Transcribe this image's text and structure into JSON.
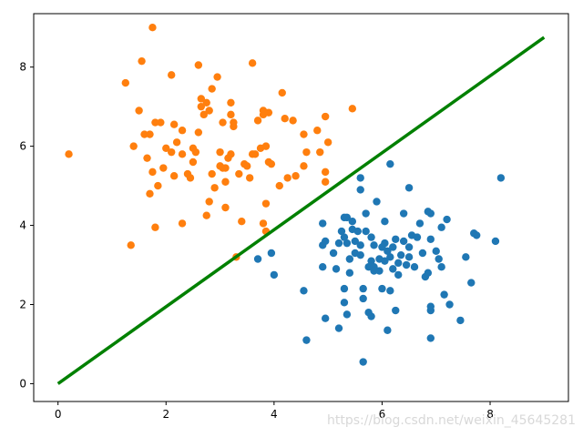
{
  "chart_data": {
    "type": "scatter",
    "title": "",
    "xlabel": "",
    "ylabel": "",
    "xlim": [
      -0.45,
      9.45
    ],
    "ylim": [
      -0.45,
      9.35
    ],
    "xticks": [
      0,
      2,
      4,
      6,
      8
    ],
    "yticks": [
      0,
      2,
      4,
      6,
      8
    ],
    "xtick_labels": [
      "0",
      "2",
      "4",
      "6",
      "8"
    ],
    "ytick_labels": [
      "0",
      "2",
      "4",
      "6",
      "8"
    ],
    "grid": false,
    "legend": "none",
    "series": [
      {
        "color": "#1f77b4",
        "points": [
          [
            3.7,
            3.15
          ],
          [
            3.95,
            3.3
          ],
          [
            4.0,
            2.75
          ],
          [
            4.55,
            2.35
          ],
          [
            4.6,
            1.1
          ],
          [
            4.9,
            4.05
          ],
          [
            4.9,
            3.5
          ],
          [
            4.95,
            3.6
          ],
          [
            4.9,
            2.95
          ],
          [
            4.95,
            1.65
          ],
          [
            5.1,
            3.3
          ],
          [
            5.15,
            2.9
          ],
          [
            5.2,
            1.4
          ],
          [
            5.2,
            3.55
          ],
          [
            5.25,
            3.85
          ],
          [
            5.3,
            4.2
          ],
          [
            5.3,
            3.7
          ],
          [
            5.3,
            2.4
          ],
          [
            5.3,
            2.05
          ],
          [
            5.35,
            1.75
          ],
          [
            5.35,
            4.2
          ],
          [
            5.35,
            3.55
          ],
          [
            5.4,
            3.15
          ],
          [
            5.4,
            2.8
          ],
          [
            5.45,
            4.1
          ],
          [
            5.45,
            3.9
          ],
          [
            5.5,
            3.6
          ],
          [
            5.5,
            3.3
          ],
          [
            5.55,
            3.85
          ],
          [
            5.6,
            5.2
          ],
          [
            5.6,
            4.9
          ],
          [
            5.6,
            3.5
          ],
          [
            5.6,
            3.25
          ],
          [
            5.65,
            2.4
          ],
          [
            5.65,
            2.15
          ],
          [
            5.65,
            0.55
          ],
          [
            5.7,
            4.3
          ],
          [
            5.7,
            3.85
          ],
          [
            5.75,
            1.8
          ],
          [
            5.75,
            2.95
          ],
          [
            5.8,
            3.1
          ],
          [
            5.8,
            3.7
          ],
          [
            5.8,
            1.7
          ],
          [
            5.85,
            3.5
          ],
          [
            5.85,
            2.95
          ],
          [
            5.85,
            2.85
          ],
          [
            5.9,
            4.6
          ],
          [
            5.95,
            3.15
          ],
          [
            5.95,
            2.85
          ],
          [
            6.0,
            3.45
          ],
          [
            6.0,
            2.4
          ],
          [
            6.05,
            4.1
          ],
          [
            6.05,
            3.55
          ],
          [
            6.05,
            3.1
          ],
          [
            6.1,
            3.35
          ],
          [
            6.1,
            1.35
          ],
          [
            6.15,
            5.55
          ],
          [
            6.15,
            3.2
          ],
          [
            6.15,
            2.35
          ],
          [
            6.2,
            3.45
          ],
          [
            6.2,
            2.9
          ],
          [
            6.25,
            3.65
          ],
          [
            6.25,
            1.85
          ],
          [
            6.3,
            2.75
          ],
          [
            6.3,
            3.05
          ],
          [
            6.35,
            3.25
          ],
          [
            6.4,
            3.6
          ],
          [
            6.4,
            4.3
          ],
          [
            6.45,
            3.0
          ],
          [
            6.5,
            4.95
          ],
          [
            6.5,
            3.45
          ],
          [
            6.5,
            3.2
          ],
          [
            6.55,
            3.75
          ],
          [
            6.6,
            2.95
          ],
          [
            6.65,
            3.7
          ],
          [
            6.7,
            4.05
          ],
          [
            6.75,
            3.3
          ],
          [
            6.8,
            2.7
          ],
          [
            6.85,
            2.8
          ],
          [
            6.85,
            4.35
          ],
          [
            6.9,
            4.3
          ],
          [
            6.9,
            1.85
          ],
          [
            6.9,
            1.15
          ],
          [
            6.9,
            1.95
          ],
          [
            6.9,
            3.65
          ],
          [
            7.0,
            3.35
          ],
          [
            7.05,
            3.15
          ],
          [
            7.1,
            3.95
          ],
          [
            7.1,
            2.95
          ],
          [
            7.15,
            2.25
          ],
          [
            7.2,
            4.15
          ],
          [
            7.25,
            2.0
          ],
          [
            7.45,
            1.6
          ],
          [
            7.55,
            3.2
          ],
          [
            7.65,
            2.55
          ],
          [
            7.7,
            3.8
          ],
          [
            7.75,
            3.75
          ],
          [
            8.1,
            3.6
          ],
          [
            8.2,
            5.2
          ]
        ]
      },
      {
        "color": "#ff7f0e",
        "points": [
          [
            0.2,
            5.8
          ],
          [
            1.25,
            7.6
          ],
          [
            1.35,
            3.5
          ],
          [
            1.4,
            6.0
          ],
          [
            1.5,
            6.9
          ],
          [
            1.55,
            8.15
          ],
          [
            1.6,
            6.3
          ],
          [
            1.65,
            5.7
          ],
          [
            1.7,
            6.3
          ],
          [
            1.7,
            4.8
          ],
          [
            1.75,
            9.0
          ],
          [
            1.75,
            5.35
          ],
          [
            1.8,
            6.6
          ],
          [
            1.8,
            3.95
          ],
          [
            1.85,
            5.0
          ],
          [
            1.9,
            6.6
          ],
          [
            1.95,
            5.45
          ],
          [
            2.0,
            5.95
          ],
          [
            2.1,
            7.8
          ],
          [
            2.1,
            5.85
          ],
          [
            2.15,
            6.55
          ],
          [
            2.15,
            5.25
          ],
          [
            2.2,
            6.1
          ],
          [
            2.3,
            5.8
          ],
          [
            2.3,
            6.4
          ],
          [
            2.3,
            4.05
          ],
          [
            2.4,
            5.3
          ],
          [
            2.45,
            5.2
          ],
          [
            2.5,
            5.6
          ],
          [
            2.5,
            5.95
          ],
          [
            2.55,
            5.85
          ],
          [
            2.6,
            8.05
          ],
          [
            2.6,
            6.35
          ],
          [
            2.65,
            7.2
          ],
          [
            2.65,
            7.0
          ],
          [
            2.7,
            6.8
          ],
          [
            2.75,
            7.1
          ],
          [
            2.75,
            4.25
          ],
          [
            2.8,
            6.9
          ],
          [
            2.8,
            4.6
          ],
          [
            2.85,
            7.45
          ],
          [
            2.85,
            5.3
          ],
          [
            2.9,
            4.95
          ],
          [
            2.95,
            7.75
          ],
          [
            3.0,
            5.5
          ],
          [
            3.0,
            5.85
          ],
          [
            3.05,
            6.6
          ],
          [
            3.05,
            5.45
          ],
          [
            3.1,
            5.1
          ],
          [
            3.1,
            5.45
          ],
          [
            3.1,
            4.45
          ],
          [
            3.15,
            5.7
          ],
          [
            3.2,
            6.8
          ],
          [
            3.2,
            7.1
          ],
          [
            3.2,
            5.8
          ],
          [
            3.25,
            6.5
          ],
          [
            3.25,
            6.6
          ],
          [
            3.3,
            3.2
          ],
          [
            3.35,
            5.3
          ],
          [
            3.4,
            4.1
          ],
          [
            3.45,
            5.55
          ],
          [
            3.5,
            5.5
          ],
          [
            3.55,
            5.2
          ],
          [
            3.6,
            8.1
          ],
          [
            3.6,
            5.8
          ],
          [
            3.65,
            5.8
          ],
          [
            3.7,
            6.65
          ],
          [
            3.75,
            5.95
          ],
          [
            3.8,
            6.9
          ],
          [
            3.8,
            6.8
          ],
          [
            3.8,
            4.05
          ],
          [
            3.85,
            3.85
          ],
          [
            3.85,
            4.55
          ],
          [
            3.85,
            6.0
          ],
          [
            3.9,
            6.85
          ],
          [
            3.9,
            5.6
          ],
          [
            3.95,
            5.55
          ],
          [
            4.1,
            5.0
          ],
          [
            4.15,
            7.35
          ],
          [
            4.2,
            6.7
          ],
          [
            4.25,
            5.2
          ],
          [
            4.35,
            6.65
          ],
          [
            4.4,
            5.25
          ],
          [
            4.55,
            5.5
          ],
          [
            4.55,
            6.3
          ],
          [
            4.6,
            5.85
          ],
          [
            4.8,
            6.4
          ],
          [
            4.85,
            5.85
          ],
          [
            4.95,
            6.75
          ],
          [
            4.95,
            5.1
          ],
          [
            4.95,
            5.35
          ],
          [
            5.0,
            6.1
          ],
          [
            5.45,
            6.95
          ]
        ]
      }
    ],
    "decision_line": {
      "color": "#008000",
      "from": [
        0,
        0
      ],
      "to": [
        9.0,
        8.75
      ]
    },
    "watermark": "https://blog.csdn.net/weixin_45645281"
  }
}
